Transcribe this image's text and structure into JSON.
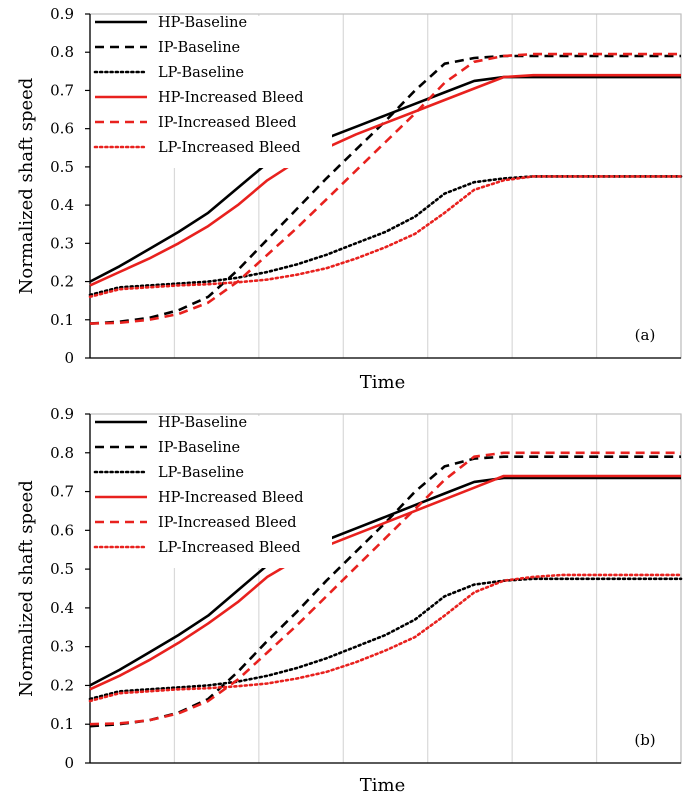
{
  "chart_data": [
    {
      "type": "line",
      "panel_tag": "(a)",
      "xlabel": "Time",
      "ylabel": "Normalized shaft speed",
      "ylim": [
        0,
        0.9
      ],
      "yticks": [
        "0",
        "0.1",
        "0.2",
        "0.3",
        "0.4",
        "0.5",
        "0.6",
        "0.7",
        "0.8",
        "0.9"
      ],
      "xlim": [
        0,
        1
      ],
      "x_gridlines": 7,
      "grid": true,
      "legend_position": "top-left",
      "series": [
        {
          "name": "HP-Baseline",
          "color": "#000000",
          "style": "solid",
          "x": [
            0,
            0.05,
            0.1,
            0.15,
            0.2,
            0.25,
            0.3,
            0.35,
            0.4,
            0.45,
            0.5,
            0.55,
            0.6,
            0.65,
            0.7,
            0.75,
            0.8,
            0.85,
            0.9,
            0.95,
            1.0
          ],
          "y": [
            0.2,
            0.24,
            0.285,
            0.33,
            0.38,
            0.445,
            0.51,
            0.545,
            0.575,
            0.605,
            0.635,
            0.665,
            0.695,
            0.725,
            0.735,
            0.735,
            0.735,
            0.735,
            0.735,
            0.735,
            0.735
          ]
        },
        {
          "name": "IP-Baseline",
          "color": "#000000",
          "style": "dashed",
          "x": [
            0,
            0.05,
            0.1,
            0.15,
            0.2,
            0.25,
            0.3,
            0.35,
            0.4,
            0.45,
            0.5,
            0.55,
            0.6,
            0.65,
            0.7,
            0.75,
            0.8,
            0.85,
            0.9,
            0.95,
            1.0
          ],
          "y": [
            0.09,
            0.095,
            0.105,
            0.125,
            0.16,
            0.23,
            0.31,
            0.39,
            0.47,
            0.545,
            0.62,
            0.7,
            0.77,
            0.785,
            0.79,
            0.79,
            0.79,
            0.79,
            0.79,
            0.79,
            0.79
          ]
        },
        {
          "name": "LP-Baseline",
          "color": "#000000",
          "style": "dotted",
          "x": [
            0,
            0.05,
            0.1,
            0.15,
            0.2,
            0.25,
            0.3,
            0.35,
            0.4,
            0.45,
            0.5,
            0.55,
            0.6,
            0.65,
            0.7,
            0.75,
            0.8,
            0.85,
            0.9,
            0.95,
            1.0
          ],
          "y": [
            0.165,
            0.185,
            0.19,
            0.195,
            0.2,
            0.21,
            0.225,
            0.245,
            0.27,
            0.3,
            0.33,
            0.37,
            0.43,
            0.46,
            0.47,
            0.475,
            0.475,
            0.475,
            0.475,
            0.475,
            0.475
          ]
        },
        {
          "name": "HP-Increased Bleed",
          "color": "#e8211e",
          "style": "solid",
          "x": [
            0,
            0.05,
            0.1,
            0.15,
            0.2,
            0.25,
            0.3,
            0.35,
            0.4,
            0.45,
            0.5,
            0.55,
            0.6,
            0.65,
            0.7,
            0.75,
            0.8,
            0.85,
            0.9,
            0.95,
            1.0
          ],
          "y": [
            0.19,
            0.225,
            0.26,
            0.3,
            0.345,
            0.4,
            0.465,
            0.515,
            0.55,
            0.585,
            0.615,
            0.645,
            0.675,
            0.705,
            0.735,
            0.74,
            0.74,
            0.74,
            0.74,
            0.74,
            0.74
          ]
        },
        {
          "name": "IP-Increased Bleed",
          "color": "#e8211e",
          "style": "dashed",
          "x": [
            0,
            0.05,
            0.1,
            0.15,
            0.2,
            0.25,
            0.3,
            0.35,
            0.4,
            0.45,
            0.5,
            0.55,
            0.6,
            0.65,
            0.7,
            0.75,
            0.8,
            0.85,
            0.9,
            0.95,
            1.0
          ],
          "y": [
            0.09,
            0.092,
            0.1,
            0.115,
            0.145,
            0.2,
            0.27,
            0.34,
            0.415,
            0.49,
            0.565,
            0.64,
            0.72,
            0.775,
            0.79,
            0.795,
            0.795,
            0.795,
            0.795,
            0.795,
            0.795
          ]
        },
        {
          "name": "LP-Increased Bleed",
          "color": "#e8211e",
          "style": "dotted",
          "x": [
            0,
            0.05,
            0.1,
            0.15,
            0.2,
            0.25,
            0.3,
            0.35,
            0.4,
            0.45,
            0.5,
            0.55,
            0.6,
            0.65,
            0.7,
            0.75,
            0.8,
            0.85,
            0.9,
            0.95,
            1.0
          ],
          "y": [
            0.16,
            0.18,
            0.185,
            0.19,
            0.193,
            0.198,
            0.205,
            0.218,
            0.235,
            0.26,
            0.29,
            0.325,
            0.38,
            0.44,
            0.465,
            0.475,
            0.475,
            0.475,
            0.475,
            0.475,
            0.475
          ]
        }
      ]
    },
    {
      "type": "line",
      "panel_tag": "(b)",
      "xlabel": "Time",
      "ylabel": "Normalized shaft speed",
      "ylim": [
        0,
        0.9
      ],
      "yticks": [
        "0",
        "0.1",
        "0.2",
        "0.3",
        "0.4",
        "0.5",
        "0.6",
        "0.7",
        "0.8",
        "0.9"
      ],
      "xlim": [
        0,
        1
      ],
      "x_gridlines": 7,
      "grid": true,
      "legend_position": "top-left",
      "series": [
        {
          "name": "HP-Baseline",
          "color": "#000000",
          "style": "solid",
          "x": [
            0,
            0.05,
            0.1,
            0.15,
            0.2,
            0.25,
            0.3,
            0.35,
            0.4,
            0.45,
            0.5,
            0.55,
            0.6,
            0.65,
            0.7,
            0.75,
            0.8,
            0.85,
            0.9,
            0.95,
            1.0
          ],
          "y": [
            0.2,
            0.24,
            0.285,
            0.33,
            0.38,
            0.445,
            0.51,
            0.545,
            0.575,
            0.605,
            0.635,
            0.665,
            0.695,
            0.725,
            0.735,
            0.735,
            0.735,
            0.735,
            0.735,
            0.735,
            0.735
          ]
        },
        {
          "name": "IP-Baseline",
          "color": "#000000",
          "style": "dashed",
          "x": [
            0,
            0.05,
            0.1,
            0.15,
            0.2,
            0.25,
            0.3,
            0.35,
            0.4,
            0.45,
            0.5,
            0.55,
            0.6,
            0.65,
            0.7,
            0.75,
            0.8,
            0.85,
            0.9,
            0.95,
            1.0
          ],
          "y": [
            0.095,
            0.1,
            0.11,
            0.13,
            0.165,
            0.235,
            0.315,
            0.39,
            0.47,
            0.545,
            0.62,
            0.7,
            0.765,
            0.785,
            0.79,
            0.79,
            0.79,
            0.79,
            0.79,
            0.79,
            0.79
          ]
        },
        {
          "name": "LP-Baseline",
          "color": "#000000",
          "style": "dotted",
          "x": [
            0,
            0.05,
            0.1,
            0.15,
            0.2,
            0.25,
            0.3,
            0.35,
            0.4,
            0.45,
            0.5,
            0.55,
            0.6,
            0.65,
            0.7,
            0.75,
            0.8,
            0.85,
            0.9,
            0.95,
            1.0
          ],
          "y": [
            0.165,
            0.185,
            0.19,
            0.195,
            0.2,
            0.21,
            0.225,
            0.245,
            0.27,
            0.3,
            0.33,
            0.37,
            0.43,
            0.46,
            0.47,
            0.475,
            0.475,
            0.475,
            0.475,
            0.475,
            0.475
          ]
        },
        {
          "name": "HP-Increased Bleed",
          "color": "#e8211e",
          "style": "solid",
          "x": [
            0,
            0.05,
            0.1,
            0.15,
            0.2,
            0.25,
            0.3,
            0.35,
            0.4,
            0.45,
            0.5,
            0.55,
            0.6,
            0.65,
            0.7,
            0.75,
            0.8,
            0.85,
            0.9,
            0.95,
            1.0
          ],
          "y": [
            0.19,
            0.225,
            0.265,
            0.31,
            0.36,
            0.415,
            0.48,
            0.525,
            0.56,
            0.59,
            0.62,
            0.65,
            0.68,
            0.71,
            0.74,
            0.74,
            0.74,
            0.74,
            0.74,
            0.74,
            0.74
          ]
        },
        {
          "name": "IP-Increased Bleed",
          "color": "#e8211e",
          "style": "dashed",
          "x": [
            0,
            0.05,
            0.1,
            0.15,
            0.2,
            0.25,
            0.3,
            0.35,
            0.4,
            0.45,
            0.5,
            0.55,
            0.6,
            0.65,
            0.7,
            0.75,
            0.8,
            0.85,
            0.9,
            0.95,
            1.0
          ],
          "y": [
            0.1,
            0.102,
            0.11,
            0.128,
            0.16,
            0.215,
            0.285,
            0.355,
            0.43,
            0.505,
            0.58,
            0.655,
            0.73,
            0.79,
            0.8,
            0.8,
            0.8,
            0.8,
            0.8,
            0.8,
            0.8
          ]
        },
        {
          "name": "LP-Increased Bleed",
          "color": "#e8211e",
          "style": "dotted",
          "x": [
            0,
            0.05,
            0.1,
            0.15,
            0.2,
            0.25,
            0.3,
            0.35,
            0.4,
            0.45,
            0.5,
            0.55,
            0.6,
            0.65,
            0.7,
            0.75,
            0.8,
            0.85,
            0.9,
            0.95,
            1.0
          ],
          "y": [
            0.16,
            0.18,
            0.185,
            0.19,
            0.193,
            0.198,
            0.205,
            0.218,
            0.235,
            0.26,
            0.29,
            0.325,
            0.38,
            0.44,
            0.47,
            0.48,
            0.485,
            0.485,
            0.485,
            0.485,
            0.485
          ]
        }
      ]
    }
  ]
}
